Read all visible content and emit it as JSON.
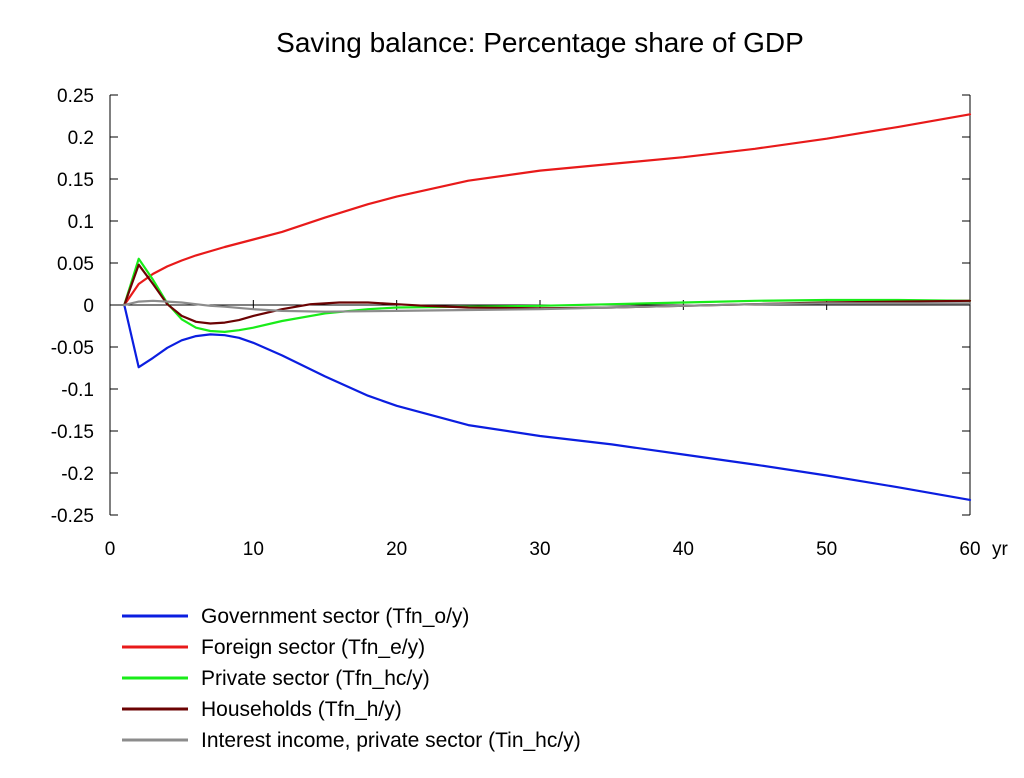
{
  "chart_data": {
    "type": "line",
    "title": "Saving balance: Percentage share of GDP",
    "xlabel": "",
    "ylabel": "",
    "x_unit": "yr",
    "xlim": [
      0,
      60
    ],
    "ylim": [
      -0.25,
      0.25
    ],
    "xticks": [
      0,
      10,
      20,
      30,
      40,
      50,
      60
    ],
    "xtick_labels": [
      "0",
      "10",
      "20",
      "30",
      "40",
      "50",
      "60"
    ],
    "yticks": [
      0.25,
      0.2,
      0.15,
      0.1,
      0.05,
      0,
      -0.05,
      -0.1,
      -0.15,
      -0.2,
      -0.25
    ],
    "ytick_labels": [
      "0.25",
      "0.2",
      "0.15",
      "0.1",
      "0.05",
      "0",
      "-0.05",
      "-0.1",
      "-0.15",
      "-0.2",
      "-0.25"
    ],
    "grid": false,
    "zero_line": true,
    "legend_position": "bottom-left",
    "series": [
      {
        "name": "Government sector (Tfn_o/y)",
        "color": "#0b1ee0",
        "x": [
          1,
          2,
          3,
          4,
          5,
          6,
          7,
          8,
          9,
          10,
          12,
          15,
          18,
          20,
          25,
          30,
          35,
          40,
          45,
          50,
          55,
          60
        ],
        "y": [
          0,
          -0.074,
          -0.063,
          -0.051,
          -0.042,
          -0.037,
          -0.035,
          -0.036,
          -0.039,
          -0.045,
          -0.06,
          -0.085,
          -0.108,
          -0.12,
          -0.143,
          -0.156,
          -0.166,
          -0.178,
          -0.19,
          -0.203,
          -0.217,
          -0.232
        ]
      },
      {
        "name": "Foreign sector (Tfn_e/y)",
        "color": "#e81a1a",
        "x": [
          1,
          2,
          3,
          4,
          5,
          6,
          8,
          10,
          12,
          15,
          18,
          20,
          25,
          30,
          35,
          40,
          45,
          50,
          55,
          60
        ],
        "y": [
          0,
          0.025,
          0.037,
          0.046,
          0.053,
          0.059,
          0.069,
          0.078,
          0.087,
          0.104,
          0.12,
          0.129,
          0.148,
          0.16,
          0.168,
          0.176,
          0.186,
          0.198,
          0.212,
          0.227
        ]
      },
      {
        "name": "Private sector (Tfn_hc/y)",
        "color": "#19ec19",
        "x": [
          1,
          2,
          3,
          4,
          5,
          6,
          7,
          8,
          9,
          10,
          12,
          15,
          18,
          20,
          25,
          30,
          35,
          40,
          45,
          50,
          55,
          60
        ],
        "y": [
          0,
          0.055,
          0.03,
          0.002,
          -0.017,
          -0.027,
          -0.031,
          -0.032,
          -0.03,
          -0.027,
          -0.019,
          -0.01,
          -0.005,
          -0.003,
          -0.002,
          -0.001,
          0.001,
          0.003,
          0.005,
          0.006,
          0.006,
          0.005
        ]
      },
      {
        "name": "Households (Tfn_h/y)",
        "color": "#6b0303",
        "x": [
          1,
          2,
          3,
          4,
          5,
          6,
          7,
          8,
          9,
          10,
          12,
          14,
          16,
          18,
          20,
          22,
          25,
          30,
          35,
          40,
          45,
          50,
          55,
          60
        ],
        "y": [
          0,
          0.048,
          0.025,
          0.001,
          -0.013,
          -0.02,
          -0.022,
          -0.021,
          -0.018,
          -0.013,
          -0.005,
          0.001,
          0.003,
          0.003,
          0.001,
          -0.001,
          -0.003,
          -0.004,
          -0.003,
          -0.001,
          0.001,
          0.003,
          0.004,
          0.005
        ]
      },
      {
        "name": "Interest income, private sector (Tin_hc/y)",
        "color": "#8c8c8c",
        "x": [
          1,
          2,
          3,
          4,
          5,
          6,
          7,
          8,
          10,
          12,
          15,
          20,
          25,
          30,
          35,
          40,
          45,
          50,
          55,
          60
        ],
        "y": [
          0,
          0.004,
          0.005,
          0.004,
          0.003,
          0.001,
          -0.001,
          -0.002,
          -0.005,
          -0.007,
          -0.008,
          -0.007,
          -0.006,
          -0.005,
          -0.003,
          -0.001,
          0.001,
          0.002,
          0.002,
          0.002
        ]
      }
    ]
  }
}
